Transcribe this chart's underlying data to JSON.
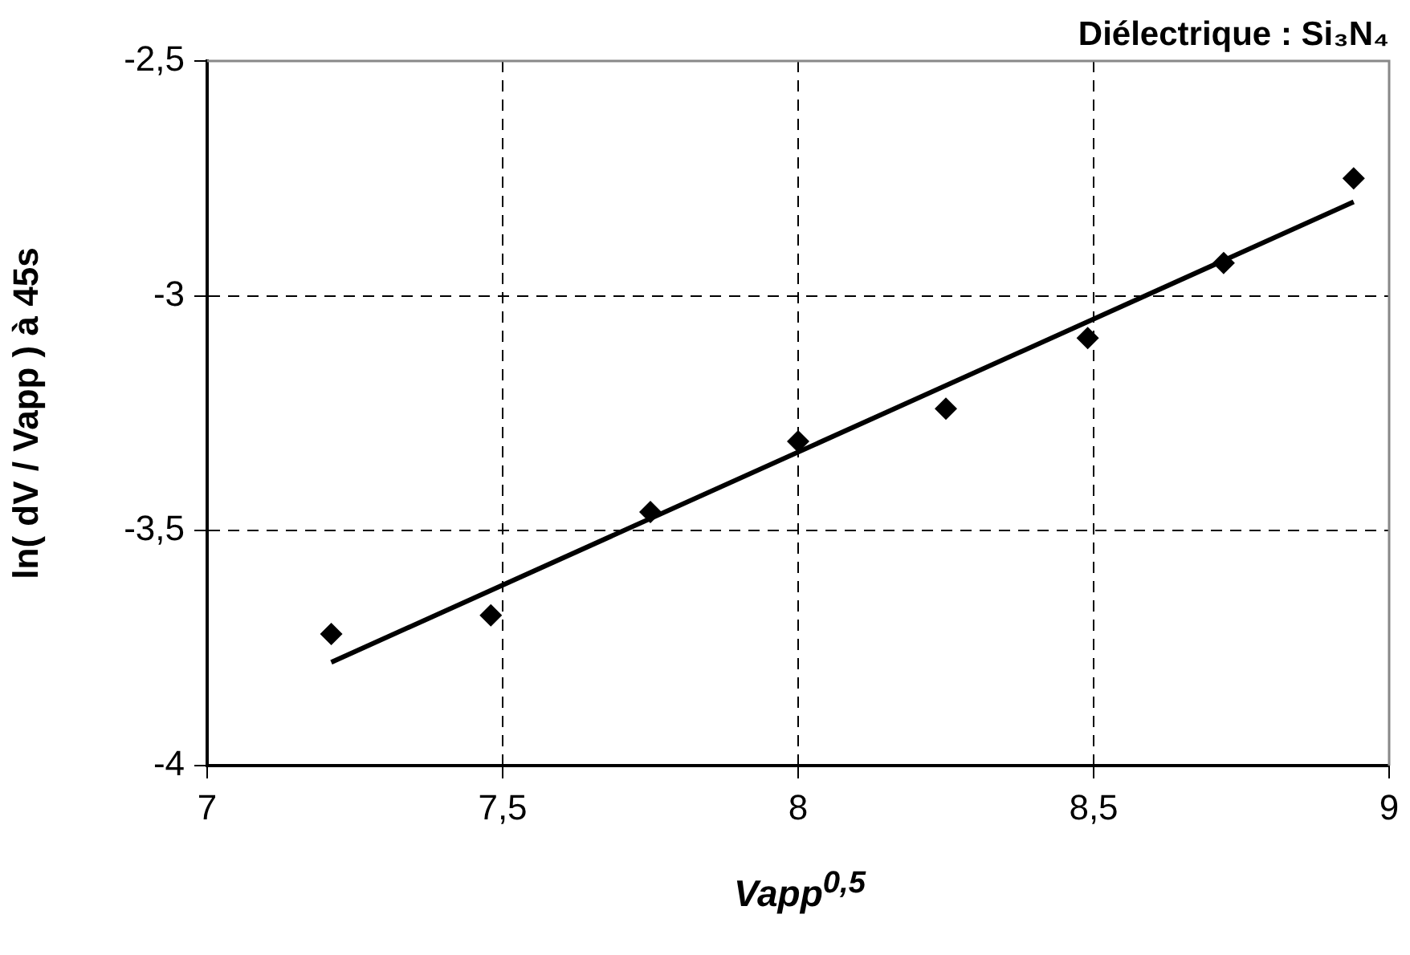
{
  "chart_data": {
    "type": "scatter",
    "title": "Diélectrique : Si₃N₄",
    "xlabel": "Vapp$^{0,5}$",
    "ylabel": "ln( dV / Vapp ) à 45s",
    "x": [
      7.21,
      7.48,
      7.75,
      8.0,
      8.25,
      8.49,
      8.72,
      8.94
    ],
    "xlim": [
      7,
      9
    ],
    "xticks": [
      7,
      {
        "value": 7.5,
        "label": "7,5"
      },
      8,
      {
        "value": 8.5,
        "label": "8,5"
      },
      9
    ],
    "ylim": [
      -4,
      -2.5
    ],
    "yticks": [
      -4,
      {
        "value": -3.5,
        "label": "-3,5"
      },
      -3,
      {
        "value": -2.5,
        "label": "-2,5"
      }
    ],
    "grid": true,
    "marker": "diamond",
    "series": [
      {
        "color": "#000000",
        "values": [
          -3.72,
          -3.68,
          -3.46,
          -3.31,
          -3.24,
          -3.09,
          -2.93,
          -2.75
        ]
      },
      {
        "type": "line",
        "x": [
          7.21,
          8.94
        ],
        "color": "#000000",
        "values": [
          -3.78,
          -2.8
        ],
        "line_style": "solid",
        "marker": "none"
      }
    ]
  }
}
